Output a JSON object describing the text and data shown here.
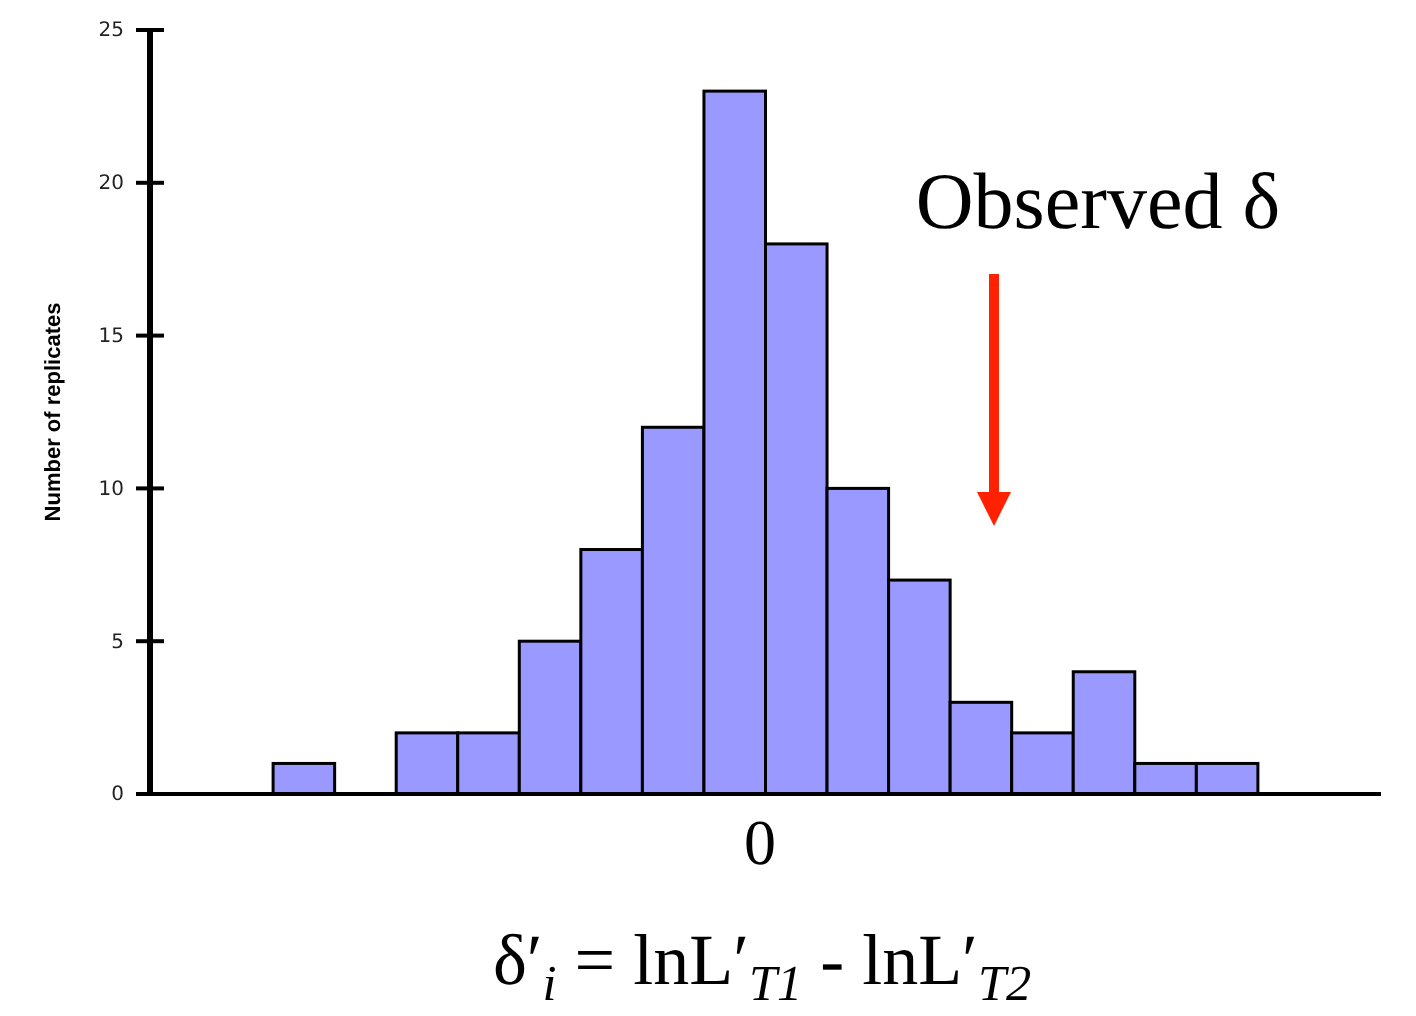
{
  "chart_data": {
    "type": "bar",
    "xlabel": "δ′$_{i}$ = lnL′$_{T1}$ - lnL′$_{T2}$",
    "ylabel": "Number of replicates",
    "categories": [
      null,
      null,
      null,
      null,
      null,
      null,
      null,
      null,
      null,
      null,
      null,
      null,
      null,
      null,
      null,
      null,
      null,
      null,
      null,
      null
    ],
    "values": [
      0,
      0,
      1,
      0,
      2,
      2,
      5,
      8,
      12,
      23,
      18,
      10,
      7,
      3,
      2,
      4,
      1,
      1,
      0,
      0
    ],
    "color": "#9999ff",
    "ylim": [
      0,
      25
    ],
    "yticks": [
      0,
      5,
      10,
      15,
      20,
      25
    ],
    "annotations": [
      "Observed δ",
      "0"
    ]
  }
}
